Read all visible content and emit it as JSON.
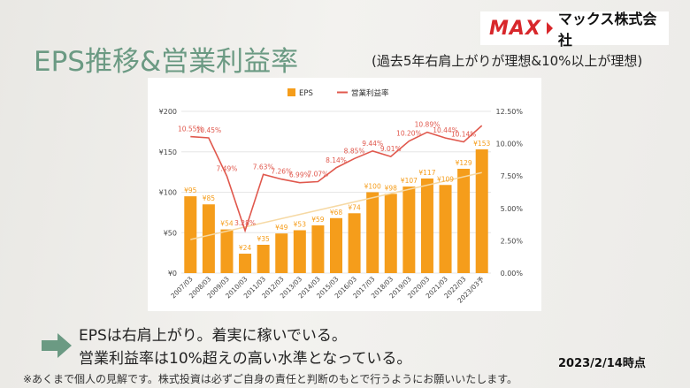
{
  "title": "EPS推移&営業利益率",
  "subtitle": "(過去5年右肩上がりが理想&10%以上が理想)",
  "logo": {
    "brand": "MAX",
    "company": "マックス株式会社"
  },
  "messages": [
    "EPSは右肩上がり。着実に稼いでいる。",
    "営業利益率は10%超えの高い水準となっている。"
  ],
  "as_of": "2023/2/14時点",
  "disclaimer": "※あくまで個人の見解です。株式投資は必ずご自身の責任と判断のもとで行うようにお願いいたします。",
  "colors": {
    "bar": "#f59d1b",
    "line": "#e0584d",
    "title": "#6b9a83",
    "arrow": "#6b9a83",
    "trend": "#f6d9a4"
  },
  "chart_data": {
    "type": "bar",
    "categories": [
      "2007/03",
      "2008/03",
      "2009/03",
      "2010/03",
      "2011/03",
      "2012/03",
      "2013/03",
      "2014/03",
      "2015/03",
      "2016/03",
      "2017/03",
      "2018/03",
      "2019/03",
      "2020/03",
      "2021/03",
      "2022/03",
      "2023/03予"
    ],
    "series": [
      {
        "name": "EPS",
        "type": "bar",
        "axis": "left",
        "values": [
          95,
          85,
          54,
          24,
          35,
          49,
          53,
          59,
          68,
          74,
          100,
          98,
          107,
          117,
          109,
          129,
          153
        ],
        "labels": [
          "¥95",
          "¥85",
          "¥54",
          "¥24",
          "¥35",
          "¥49",
          "¥53",
          "¥59",
          "¥68",
          "¥74",
          "¥100",
          "¥98",
          "¥107",
          "¥117",
          "¥109",
          "¥129",
          "¥153"
        ]
      },
      {
        "name": "営業利益率",
        "type": "line",
        "axis": "right",
        "values": [
          10.55,
          10.45,
          7.49,
          3.28,
          7.63,
          7.26,
          6.99,
          7.07,
          8.14,
          8.85,
          9.44,
          9.01,
          10.2,
          10.89,
          10.44,
          10.14,
          11.4
        ],
        "labels": [
          "10.55%",
          "10.45%",
          "7.49%",
          "3.28%",
          "7.63%",
          "7.26%",
          "6.99%",
          "7.07%",
          "8.14%",
          "8.85%",
          "9.44%",
          "9.01%",
          "10.20%",
          "10.89%",
          "10.44%",
          "10.14%",
          ""
        ]
      }
    ],
    "left_axis": {
      "ticks": [
        "¥0",
        "¥50",
        "¥100",
        "¥150",
        "¥200"
      ],
      "ylim": [
        0,
        200
      ]
    },
    "right_axis": {
      "ticks": [
        "0.00%",
        "2.50%",
        "5.00%",
        "7.50%",
        "10.00%",
        "12.50%"
      ],
      "ylim": [
        0,
        12.5
      ]
    },
    "legend": "top",
    "trendline": true
  }
}
